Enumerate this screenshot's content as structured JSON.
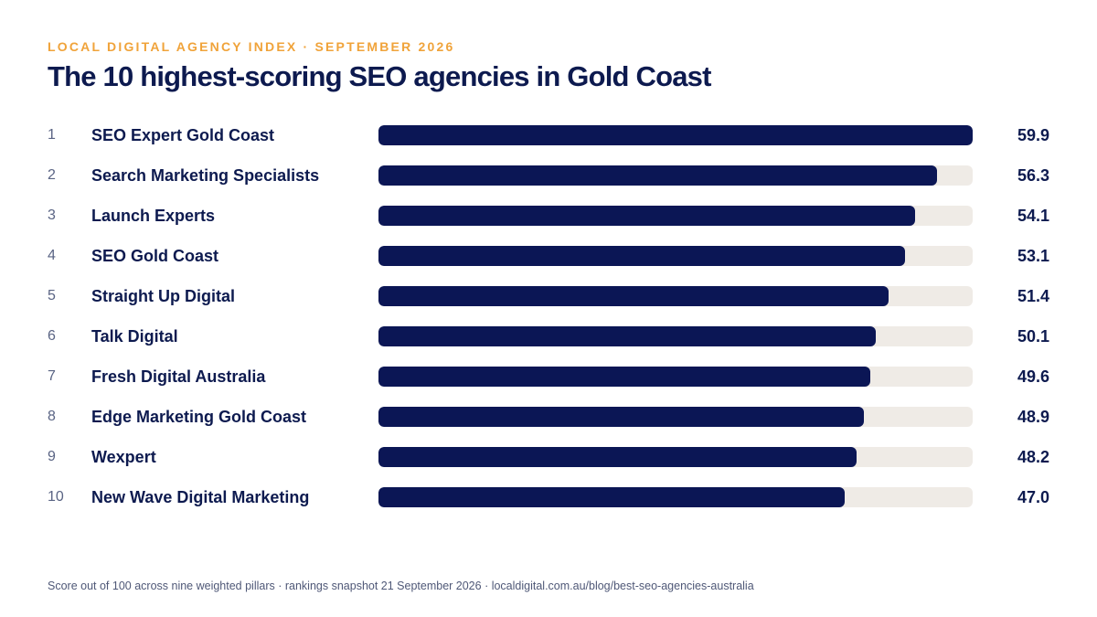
{
  "header": {
    "kicker": "LOCAL DIGITAL AGENCY INDEX · SEPTEMBER 2026",
    "title": "The 10 highest-scoring SEO agencies in Gold Coast"
  },
  "footer": {
    "note": "Score out of 100 across nine weighted pillars · rankings snapshot 21 September 2026 · localdigital.com.au/blog/best-seo-agencies-australia"
  },
  "colors": {
    "bar_fill": "#0b1655",
    "bar_track": "#efebe6",
    "kicker": "#f0a33a",
    "text": "#0d1a4f"
  },
  "chart_data": {
    "type": "bar",
    "orientation": "horizontal",
    "title": "The 10 highest-scoring SEO agencies in Gold Coast",
    "ranks": [
      "1",
      "2",
      "3",
      "4",
      "5",
      "6",
      "7",
      "8",
      "9",
      "10"
    ],
    "categories": [
      "SEO Expert Gold Coast",
      "Search Marketing Specialists",
      "Launch Experts",
      "SEO Gold Coast",
      "Straight Up Digital",
      "Talk Digital",
      "Fresh Digital Australia",
      "Edge Marketing Gold Coast",
      "Wexpert",
      "New Wave Digital Marketing"
    ],
    "values": [
      59.9,
      56.3,
      54.1,
      53.1,
      51.4,
      50.1,
      49.6,
      48.9,
      48.2,
      47.0
    ],
    "value_labels": [
      "59.9",
      "56.3",
      "54.1",
      "53.1",
      "51.4",
      "50.1",
      "49.6",
      "48.9",
      "48.2",
      "47.0"
    ],
    "xlim": [
      0,
      59.9
    ],
    "grid": false,
    "legend": "none"
  }
}
